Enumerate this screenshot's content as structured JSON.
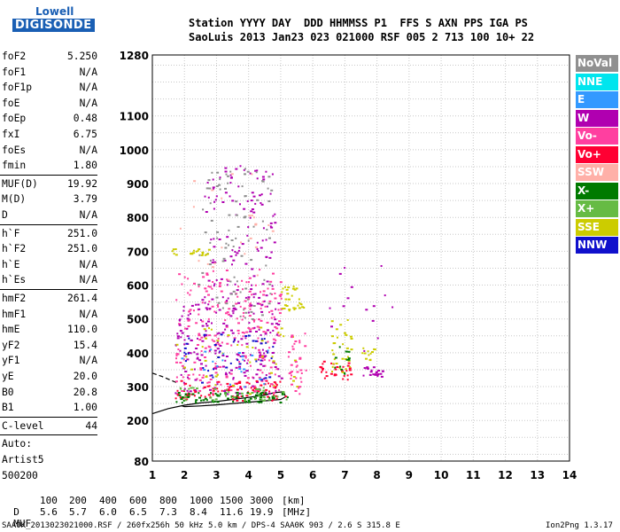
{
  "logo": {
    "top": "Lowell",
    "bottom": "DIGISONDE"
  },
  "header": {
    "line1": "Station YYYY DAY  DDD HHMMSS P1  FFS S AXN PPS IGA PS",
    "line2": "SaoLuis 2013 Jan23 023 021000 RSF 005 2 713 100 10+ 22"
  },
  "params_group1": [
    {
      "name": "foF2",
      "value": "5.250"
    },
    {
      "name": "foF1",
      "value": "N/A"
    },
    {
      "name": "foF1p",
      "value": "N/A"
    },
    {
      "name": "foE",
      "value": "N/A"
    },
    {
      "name": "foEp",
      "value": "0.48"
    },
    {
      "name": "fxI",
      "value": "6.75"
    },
    {
      "name": "foEs",
      "value": "N/A"
    },
    {
      "name": "fmin",
      "value": "1.80"
    }
  ],
  "params_group2": [
    {
      "name": "MUF(D)",
      "value": "19.92"
    },
    {
      "name": "M(D)",
      "value": "3.79"
    },
    {
      "name": "D",
      "value": "N/A"
    }
  ],
  "params_group3": [
    {
      "name": "h`F",
      "value": "251.0"
    },
    {
      "name": "h`F2",
      "value": "251.0"
    },
    {
      "name": "h`E",
      "value": "N/A"
    },
    {
      "name": "h`Es",
      "value": "N/A"
    }
  ],
  "params_group4": [
    {
      "name": "hmF2",
      "value": "261.4"
    },
    {
      "name": "hmF1",
      "value": "N/A"
    },
    {
      "name": "hmE",
      "value": "110.0"
    },
    {
      "name": "yF2",
      "value": "15.4"
    },
    {
      "name": "yF1",
      "value": "N/A"
    },
    {
      "name": "yE",
      "value": "20.0"
    },
    {
      "name": "B0",
      "value": "20.8"
    },
    {
      "name": "B1",
      "value": "1.00"
    }
  ],
  "clevel": {
    "name": "C-level",
    "value": "44"
  },
  "auto": [
    "Auto:",
    "Artist5",
    "500200"
  ],
  "muf_table": {
    "d_label": "D",
    "d_values": [
      "100",
      "200",
      "400",
      "600",
      "800",
      "1000",
      "1500",
      "3000",
      "[km]"
    ],
    "muf_label": "MUF",
    "muf_values": [
      "5.6",
      "5.7",
      "6.0",
      "6.5",
      "7.3",
      "8.4",
      "11.6",
      "19.9",
      "[MHz]"
    ]
  },
  "footer": {
    "left": "SAA0K_2013023021000.RSF / 260fx256h 50 kHz 5.0 km / DPS-4 SAA0K 903 / 2.6 S 315.8 E",
    "right": "Ion2Png 1.3.17"
  },
  "legend": [
    {
      "label": "NoVal",
      "color": "#909090"
    },
    {
      "label": "NNE",
      "color": "#00e5ee"
    },
    {
      "label": "E",
      "color": "#3399ff"
    },
    {
      "label": "W",
      "color": "#b000b0"
    },
    {
      "label": "Vo-",
      "color": "#ff3fa0"
    },
    {
      "label": "Vo+",
      "color": "#ff0033"
    },
    {
      "label": "SSW",
      "color": "#ffb0a8"
    },
    {
      "label": "X-",
      "color": "#007a00"
    },
    {
      "label": "X+",
      "color": "#66bb44"
    },
    {
      "label": "SSE",
      "color": "#cccc00"
    },
    {
      "label": "NNW",
      "color": "#1010cc"
    }
  ],
  "chart_data": {
    "type": "scatter",
    "xlim": [
      1,
      14
    ],
    "ylim": [
      80,
      1280
    ],
    "x_ticks": [
      1,
      2,
      3,
      4,
      5,
      6,
      7,
      8,
      9,
      10,
      11,
      12,
      13,
      14
    ],
    "y_ticks": [
      80,
      200,
      300,
      400,
      500,
      600,
      700,
      800,
      900,
      1000,
      1100,
      1280
    ],
    "grid": true,
    "traces": [
      {
        "name": "",
        "style": "solid",
        "points": [
          [
            1,
            220
          ],
          [
            1.5,
            235
          ],
          [
            2,
            245
          ],
          [
            2.5,
            252
          ],
          [
            3,
            256
          ],
          [
            3.5,
            262
          ],
          [
            4,
            268
          ],
          [
            4.5,
            275
          ],
          [
            4.8,
            282
          ],
          [
            5.1,
            285
          ],
          [
            5.15,
            270
          ],
          [
            5,
            262
          ],
          [
            4.5,
            258
          ],
          [
            4,
            254
          ],
          [
            3.5,
            250
          ],
          [
            3,
            246
          ],
          [
            2.5,
            243
          ],
          [
            2,
            241
          ],
          [
            1.9,
            244
          ]
        ]
      },
      {
        "name": "",
        "style": "dashed",
        "points": [
          [
            1,
            340
          ],
          [
            1.3,
            330
          ],
          [
            1.6,
            318
          ],
          [
            1.8,
            310
          ]
        ]
      }
    ],
    "clusters": [
      {
        "color": "#ff3fa0",
        "x": [
          1.7,
          5.0
        ],
        "y": [
          280,
          650
        ],
        "n": 260
      },
      {
        "color": "#b000b0",
        "x": [
          1.7,
          5.0
        ],
        "y": [
          280,
          560
        ],
        "n": 200
      },
      {
        "color": "#b000b0",
        "x": [
          2.6,
          4.8
        ],
        "y": [
          560,
          960
        ],
        "n": 120
      },
      {
        "color": "#ff0033",
        "x": [
          1.7,
          5.2
        ],
        "y": [
          260,
          320
        ],
        "n": 90
      },
      {
        "color": "#007a00",
        "x": [
          1.7,
          5.2
        ],
        "y": [
          255,
          285
        ],
        "n": 70
      },
      {
        "color": "#66bb44",
        "x": [
          1.7,
          5.2
        ],
        "y": [
          260,
          300
        ],
        "n": 40
      },
      {
        "color": "#cccc00",
        "x": [
          1.7,
          5.5
        ],
        "y": [
          280,
          480
        ],
        "n": 45
      },
      {
        "color": "#1010cc",
        "x": [
          1.7,
          4.8
        ],
        "y": [
          300,
          460
        ],
        "n": 40
      },
      {
        "color": "#3399ff",
        "x": [
          1.8,
          4.7
        ],
        "y": [
          300,
          420
        ],
        "n": 20
      },
      {
        "color": "#909090",
        "x": [
          2.4,
          4.7
        ],
        "y": [
          500,
          950
        ],
        "n": 90
      },
      {
        "color": "#ffb0a8",
        "x": [
          1.8,
          4.8
        ],
        "y": [
          600,
          950
        ],
        "n": 25
      },
      {
        "color": "#cccc00",
        "x": [
          1.6,
          2.8
        ],
        "y": [
          690,
          710
        ],
        "n": 20
      },
      {
        "color": "#cccc00",
        "x": [
          5.0,
          5.7
        ],
        "y": [
          520,
          600
        ],
        "n": 30
      },
      {
        "color": "#ff3fa0",
        "x": [
          5.2,
          5.8
        ],
        "y": [
          280,
          460
        ],
        "n": 35
      },
      {
        "color": "#ff0033",
        "x": [
          6.2,
          7.2
        ],
        "y": [
          320,
          380
        ],
        "n": 30
      },
      {
        "color": "#cccc00",
        "x": [
          6.5,
          7.2
        ],
        "y": [
          340,
          500
        ],
        "n": 30
      },
      {
        "color": "#007a00",
        "x": [
          6.6,
          7.1
        ],
        "y": [
          340,
          420
        ],
        "n": 12
      },
      {
        "color": "#b000b0",
        "x": [
          7.5,
          8.2
        ],
        "y": [
          330,
          360
        ],
        "n": 25
      },
      {
        "color": "#cccc00",
        "x": [
          7.5,
          7.9
        ],
        "y": [
          380,
          420
        ],
        "n": 12
      },
      {
        "color": "#b000b0",
        "x": [
          6.4,
          8.5
        ],
        "y": [
          400,
          660
        ],
        "n": 15
      }
    ]
  }
}
